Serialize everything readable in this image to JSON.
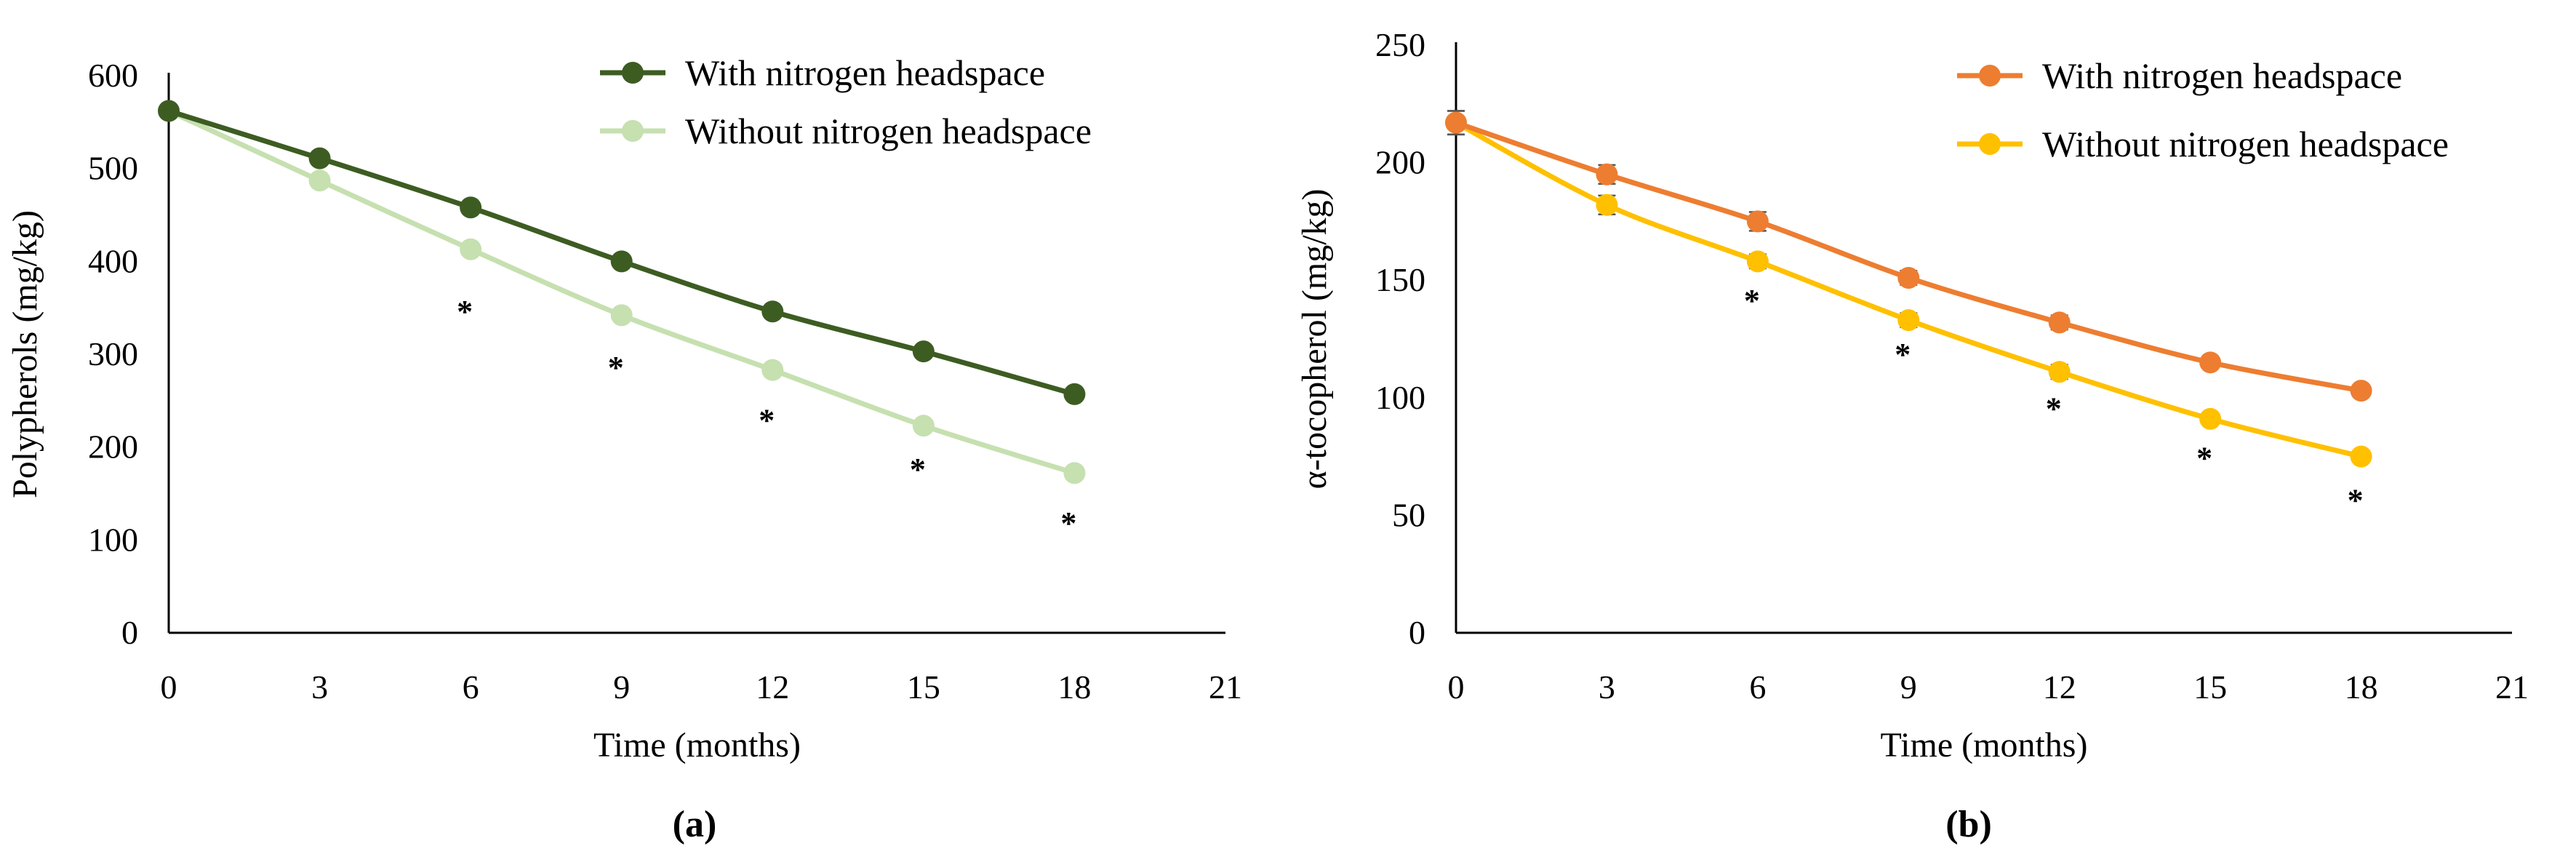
{
  "chart_data": [
    {
      "type": "line",
      "panel_label": "(a)",
      "xlabel": "Time (months)",
      "ylabel": "Polypherols (mg/kg)",
      "xlim": [
        0,
        21
      ],
      "ylim": [
        0,
        600
      ],
      "x_ticks": [
        "0",
        "3",
        "6",
        "9",
        "12",
        "15",
        "18",
        "21"
      ],
      "y_ticks": [
        "0",
        "100",
        "200",
        "300",
        "400",
        "500",
        "600"
      ],
      "x": [
        0,
        3,
        6,
        9,
        12,
        15,
        18
      ],
      "grid": false,
      "legend_position": "top-right",
      "marker": "circle",
      "series": [
        {
          "name": "With nitrogen headspace",
          "color": "#3d5c22",
          "values": [
            562,
            511,
            458,
            400,
            346,
            303,
            257
          ]
        },
        {
          "name": "Without nitrogen headspace",
          "color": "#c6e0b0",
          "values": [
            562,
            487,
            413,
            342,
            283,
            223,
            172
          ]
        }
      ],
      "annotations": [
        {
          "text": "*",
          "x": 6,
          "y": 350
        },
        {
          "text": "*",
          "x": 9,
          "y": 290
        },
        {
          "text": "*",
          "x": 12,
          "y": 233
        },
        {
          "text": "*",
          "x": 15,
          "y": 180
        },
        {
          "text": "*",
          "x": 18,
          "y": 122
        }
      ]
    },
    {
      "type": "line",
      "panel_label": "(b)",
      "xlabel": "Time (months)",
      "ylabel": "α-tocopherol (mg/kg)",
      "xlim": [
        0,
        21
      ],
      "ylim": [
        0,
        250
      ],
      "x_ticks": [
        "0",
        "3",
        "6",
        "9",
        "12",
        "15",
        "18",
        "21"
      ],
      "y_ticks": [
        "0",
        "50",
        "100",
        "150",
        "200",
        "250"
      ],
      "x": [
        0,
        3,
        6,
        9,
        12,
        15,
        18
      ],
      "grid": false,
      "legend_position": "top-right",
      "marker": "circle",
      "error_bars": true,
      "series": [
        {
          "name": "With nitrogen headspace",
          "color": "#ed7d31",
          "values": [
            217,
            195,
            175,
            151,
            132,
            115,
            103
          ],
          "errors": [
            5,
            4,
            4,
            3,
            3,
            2,
            2
          ]
        },
        {
          "name": "Without nitrogen headspace",
          "color": "#ffc000",
          "values": [
            217,
            182,
            158,
            133,
            111,
            91,
            75
          ],
          "errors": [
            5,
            4,
            3,
            3,
            3,
            2,
            2
          ]
        }
      ],
      "annotations": [
        {
          "text": "*",
          "x": 6,
          "y": 143
        },
        {
          "text": "*",
          "x": 9,
          "y": 120
        },
        {
          "text": "*",
          "x": 12,
          "y": 97
        },
        {
          "text": "*",
          "x": 15,
          "y": 76
        },
        {
          "text": "*",
          "x": 18,
          "y": 58
        }
      ]
    }
  ]
}
